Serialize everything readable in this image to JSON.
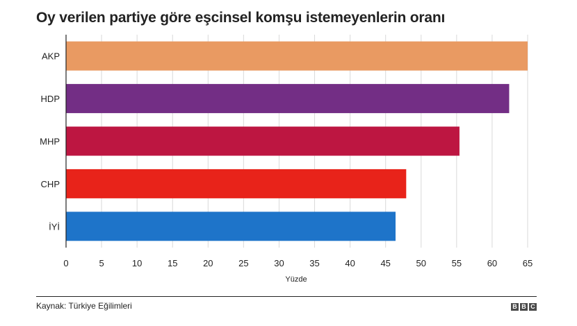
{
  "chart_data": {
    "type": "bar",
    "orientation": "horizontal",
    "title": "Oy verilen partiye göre eşcinsel komşu istemeyenlerin oranı",
    "categories": [
      "AKP",
      "HDP",
      "MHP",
      "CHP",
      "İYİ"
    ],
    "values": [
      65,
      62.4,
      55.4,
      47.9,
      46.4
    ],
    "colors": [
      "#E99A62",
      "#732E85",
      "#BD1641",
      "#E8231A",
      "#1E74C9"
    ],
    "xlabel": "Yüzde",
    "xlim": [
      0,
      65
    ],
    "xticks": [
      0,
      5,
      10,
      15,
      20,
      25,
      30,
      35,
      40,
      45,
      50,
      55,
      60,
      65
    ],
    "grid": true
  },
  "footer": {
    "source": "Kaynak: Türkiye Eğilimleri",
    "logo_letters": [
      "B",
      "B",
      "C"
    ]
  }
}
